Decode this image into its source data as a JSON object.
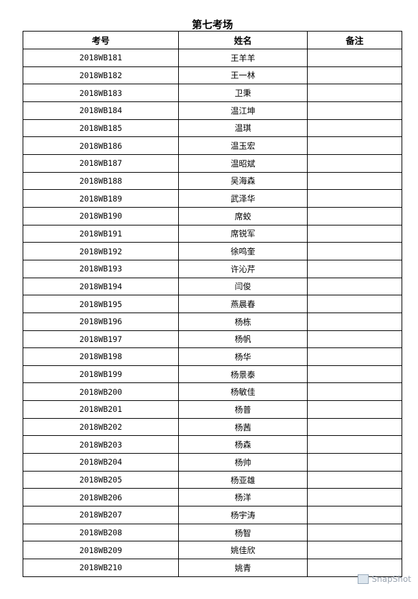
{
  "title": "第七考场",
  "columns": [
    "考号",
    "姓名",
    "备注"
  ],
  "rows": [
    {
      "id": "2018WB181",
      "name": "王羊羊",
      "note": ""
    },
    {
      "id": "2018WB182",
      "name": "王一林",
      "note": ""
    },
    {
      "id": "2018WB183",
      "name": "卫秉",
      "note": ""
    },
    {
      "id": "2018WB184",
      "name": "温江坤",
      "note": ""
    },
    {
      "id": "2018WB185",
      "name": "温琪",
      "note": ""
    },
    {
      "id": "2018WB186",
      "name": "温玉宏",
      "note": ""
    },
    {
      "id": "2018WB187",
      "name": "温昭斌",
      "note": ""
    },
    {
      "id": "2018WB188",
      "name": "吴海森",
      "note": ""
    },
    {
      "id": "2018WB189",
      "name": "武泽华",
      "note": ""
    },
    {
      "id": "2018WB190",
      "name": "席蛟",
      "note": ""
    },
    {
      "id": "2018WB191",
      "name": "席锐军",
      "note": ""
    },
    {
      "id": "2018WB192",
      "name": "徐鸣奎",
      "note": ""
    },
    {
      "id": "2018WB193",
      "name": "许沁芹",
      "note": ""
    },
    {
      "id": "2018WB194",
      "name": "闫俊",
      "note": ""
    },
    {
      "id": "2018WB195",
      "name": "燕晨春",
      "note": ""
    },
    {
      "id": "2018WB196",
      "name": "杨栋",
      "note": ""
    },
    {
      "id": "2018WB197",
      "name": "杨帆",
      "note": ""
    },
    {
      "id": "2018WB198",
      "name": "杨华",
      "note": ""
    },
    {
      "id": "2018WB199",
      "name": "杨景泰",
      "note": ""
    },
    {
      "id": "2018WB200",
      "name": "杨敏佳",
      "note": ""
    },
    {
      "id": "2018WB201",
      "name": "杨普",
      "note": ""
    },
    {
      "id": "2018WB202",
      "name": "杨茜",
      "note": ""
    },
    {
      "id": "2018WB203",
      "name": "杨森",
      "note": ""
    },
    {
      "id": "2018WB204",
      "name": "杨帅",
      "note": ""
    },
    {
      "id": "2018WB205",
      "name": "杨亚雄",
      "note": ""
    },
    {
      "id": "2018WB206",
      "name": "杨洋",
      "note": ""
    },
    {
      "id": "2018WB207",
      "name": "杨宇涛",
      "note": ""
    },
    {
      "id": "2018WB208",
      "name": "杨智",
      "note": ""
    },
    {
      "id": "2018WB209",
      "name": "姚佳欣",
      "note": ""
    },
    {
      "id": "2018WB210",
      "name": "姚青",
      "note": ""
    }
  ],
  "watermark": "SnapShot"
}
